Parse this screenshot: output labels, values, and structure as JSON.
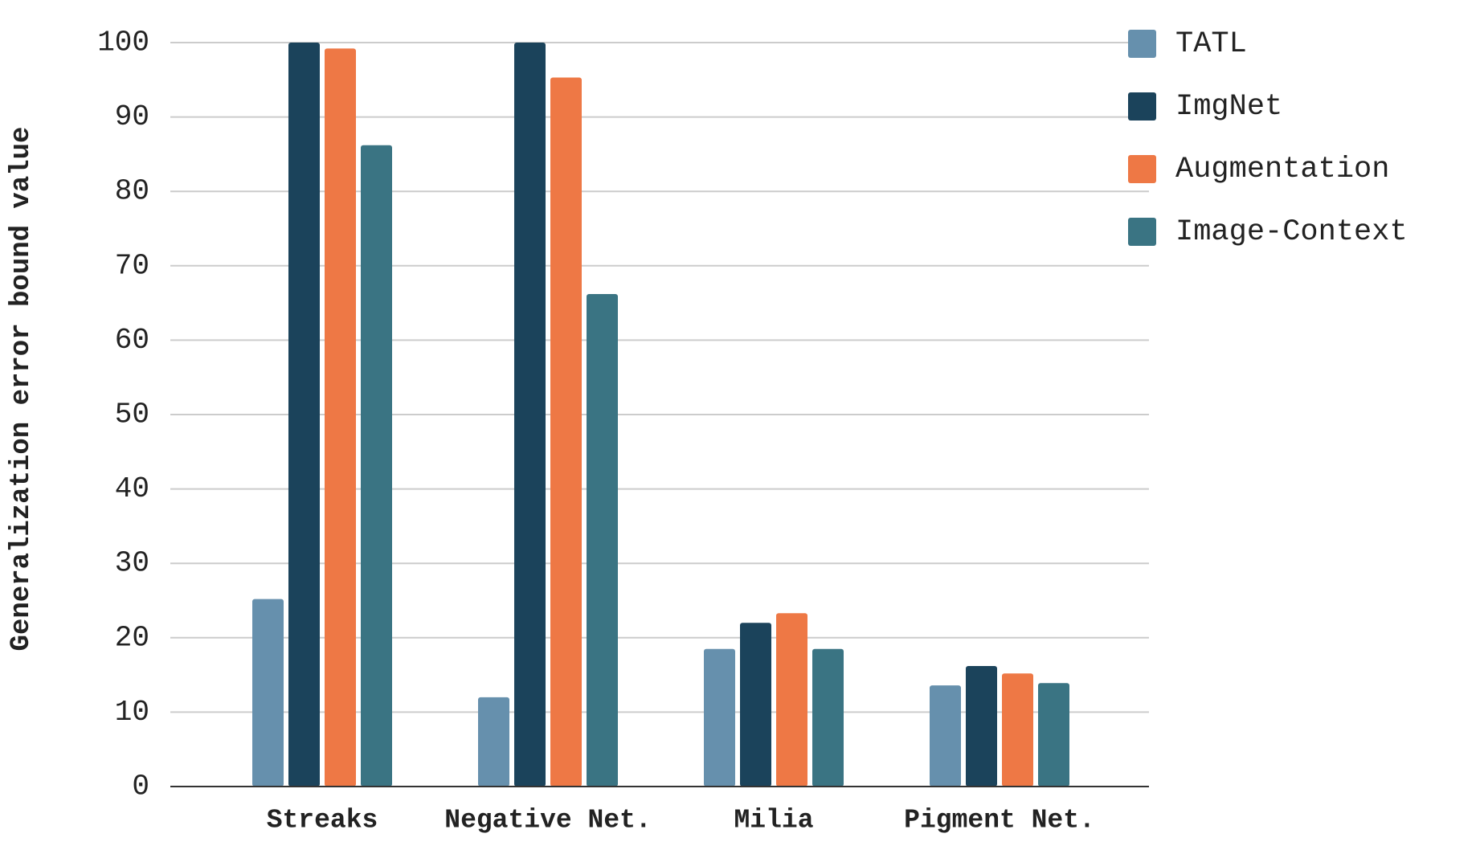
{
  "chart_data": {
    "type": "bar",
    "y_axis_label": "Generalization error bound value",
    "categories": [
      "Streaks",
      "Negative Net.",
      "Milia",
      "Pigment Net."
    ],
    "series": [
      {
        "name": "TATL",
        "color": "#6690ad",
        "values": [
          25.2,
          12,
          18.5,
          13.6
        ]
      },
      {
        "name": "ImgNet",
        "color": "#1b435b",
        "values": [
          100,
          100,
          22,
          16.2
        ]
      },
      {
        "name": "Augmentation",
        "color": "#ee7845",
        "values": [
          99.2,
          95.3,
          23.3,
          15.2
        ]
      },
      {
        "name": "Image-Context",
        "color": "#3a7483",
        "values": [
          86.2,
          66.2,
          18.5,
          13.9
        ]
      }
    ],
    "ylim": [
      0,
      100
    ],
    "yticks": [
      0,
      10,
      20,
      30,
      40,
      50,
      60,
      70,
      80,
      90,
      100
    ],
    "grid": true,
    "legend": "right"
  }
}
